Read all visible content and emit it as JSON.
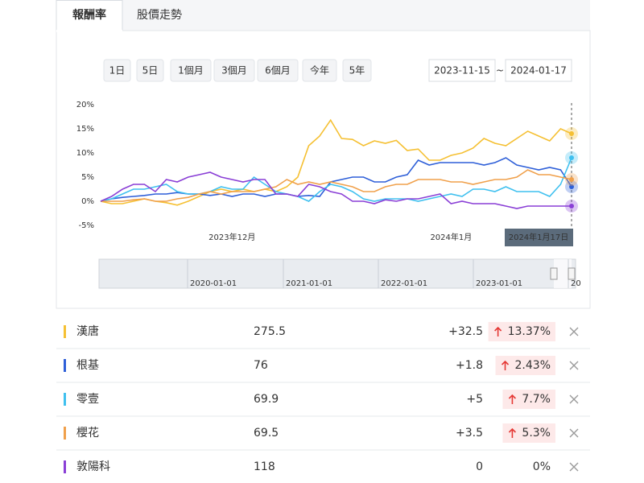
{
  "tabs": [
    "報酬率",
    "股價走勢"
  ],
  "ranges": [
    "1日",
    "5日",
    "1個月",
    "3個月",
    "6個月",
    "今年",
    "5年"
  ],
  "date_from": "2023-11-15",
  "date_sep": "~",
  "date_to": "2024-01-17",
  "chart_data": {
    "type": "line",
    "categories": [
      null,
      null,
      null,
      null,
      null,
      null,
      null,
      null,
      null,
      null,
      null,
      null,
      "2023年12月",
      null,
      null,
      null,
      null,
      null,
      null,
      null,
      null,
      null,
      null,
      null,
      null,
      null,
      null,
      null,
      null,
      null,
      null,
      null,
      "2024年1月",
      null,
      null,
      null,
      null,
      null,
      null,
      null,
      null,
      null,
      null,
      null
    ],
    "crosshair_label": "2024年1月17日",
    "ylim": [
      -5,
      20
    ],
    "yticks": [
      {
        "value": 20,
        "label": "20%"
      },
      {
        "value": 15,
        "label": "15%"
      },
      {
        "value": 10,
        "label": "10%"
      },
      {
        "value": 5,
        "label": "5%"
      },
      {
        "value": 0,
        "label": "0%"
      },
      {
        "value": -5,
        "label": "-5%"
      }
    ],
    "grid": false,
    "series": [
      {
        "name": "漢唐",
        "color": "#f5c033",
        "values": [
          0,
          -0.5,
          -0.5,
          0,
          0.5,
          0,
          -0.3,
          -0.8,
          0,
          1,
          2,
          2.5,
          2,
          2.5,
          2,
          2.5,
          2,
          3,
          5,
          11.5,
          13.5,
          16.8,
          13,
          12.8,
          11.5,
          12.5,
          12,
          12.6,
          10.5,
          10.8,
          8.5,
          8.5,
          9.5,
          10,
          11,
          13,
          12,
          11.5,
          13,
          14.5,
          13.5,
          12.5,
          15,
          14
        ]
      },
      {
        "name": "根基",
        "color": "#2e5fd8",
        "values": [
          0,
          0.5,
          0.8,
          1,
          1.2,
          1.5,
          1.5,
          1.8,
          1.5,
          1.5,
          1.2,
          1.5,
          1,
          1.5,
          1.5,
          1,
          1.5,
          1.5,
          1,
          1.2,
          1,
          4,
          4.5,
          5,
          5,
          4,
          4,
          5,
          5.5,
          8.5,
          7.5,
          8,
          8,
          8,
          8,
          7.5,
          8,
          9,
          7.5,
          7,
          6.5,
          7,
          6.5,
          3
        ]
      },
      {
        "name": "零壹",
        "color": "#3fc0ef",
        "values": [
          0,
          0.5,
          1.5,
          2.5,
          2.5,
          3,
          3.5,
          2,
          1.5,
          1.5,
          2,
          3,
          2.5,
          2.5,
          5,
          3.5,
          2,
          1.5,
          1,
          0,
          2,
          3.5,
          3,
          2,
          0.5,
          0,
          0.5,
          0.5,
          0.5,
          0,
          0.5,
          1,
          1.5,
          1,
          2.5,
          2.5,
          2,
          3,
          2,
          2,
          2,
          1,
          3.5,
          9
        ]
      },
      {
        "name": "櫻花",
        "color": "#f0a04b",
        "values": [
          0,
          0,
          0,
          0.3,
          0.5,
          0,
          0,
          0.5,
          0.8,
          1.5,
          2,
          1.5,
          2,
          2,
          2,
          2.5,
          3,
          4.5,
          3.5,
          4,
          3.5,
          4,
          3.5,
          3,
          2,
          2,
          3,
          3.5,
          3.5,
          4.5,
          4.5,
          4.5,
          4,
          4,
          3.5,
          4,
          4.5,
          4.5,
          5,
          6.5,
          5.5,
          5.5,
          5,
          4.5
        ]
      },
      {
        "name": "敦陽科",
        "color": "#8a3fd6",
        "values": [
          0,
          1,
          2.5,
          3.5,
          3.5,
          2,
          4.5,
          4,
          5,
          5.5,
          6,
          5,
          4.5,
          4,
          4.5,
          4.5,
          1.5,
          1.5,
          1,
          3.5,
          3,
          2,
          1.5,
          0,
          0,
          -0.5,
          0.3,
          0,
          0.5,
          0.5,
          1,
          1.5,
          -0.5,
          0,
          -0.5,
          -0.5,
          -0.5,
          -1,
          -1.5,
          -1,
          -1,
          -1,
          -1,
          -1
        ]
      }
    ]
  },
  "navigator": [
    "2020-01-01",
    "2021-01-01",
    "2022-01-01",
    "2023-01-01",
    "20"
  ],
  "stocks": [
    {
      "price": "275.5",
      "change": "+32.5",
      "pct": "13.37%"
    },
    {
      "price": "76",
      "change": "+1.8",
      "pct": "2.43%"
    },
    {
      "price": "69.9",
      "change": "+5",
      "pct": "7.7%"
    },
    {
      "price": "69.5",
      "change": "+3.5",
      "pct": "5.3%"
    },
    {
      "price": "118",
      "change": "0",
      "pct": "0%"
    }
  ]
}
